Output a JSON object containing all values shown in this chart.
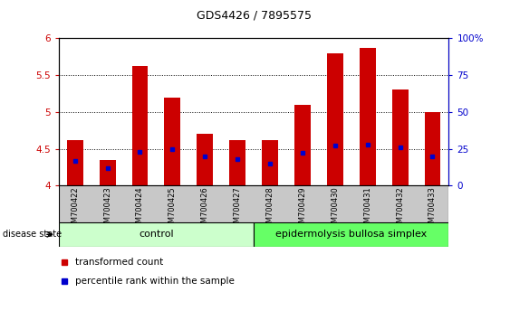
{
  "title": "GDS4426 / 7895575",
  "samples": [
    "GSM700422",
    "GSM700423",
    "GSM700424",
    "GSM700425",
    "GSM700426",
    "GSM700427",
    "GSM700428",
    "GSM700429",
    "GSM700430",
    "GSM700431",
    "GSM700432",
    "GSM700433"
  ],
  "transformed_count": [
    4.62,
    4.35,
    5.62,
    5.2,
    4.7,
    4.62,
    4.62,
    5.1,
    5.8,
    5.87,
    5.3,
    5.0
  ],
  "percentile_rank": [
    17,
    12,
    23,
    25,
    20,
    18,
    15,
    22,
    27,
    28,
    26,
    20
  ],
  "bar_bottom": 4.0,
  "ylim_left": [
    4.0,
    6.0
  ],
  "ylim_right": [
    0,
    100
  ],
  "yticks_left": [
    4.0,
    4.5,
    5.0,
    5.5,
    6.0
  ],
  "yticks_right": [
    0,
    25,
    50,
    75,
    100
  ],
  "ytick_labels_left": [
    "4",
    "4.5",
    "5",
    "5.5",
    "6"
  ],
  "ytick_labels_right": [
    "0",
    "25",
    "50",
    "75",
    "100%"
  ],
  "bar_color": "#cc0000",
  "percentile_color": "#0000cc",
  "control_label": "control",
  "ebs_label": "epidermolysis bullosa simplex",
  "disease_state_label": "disease state",
  "legend_bar_label": "transformed count",
  "legend_pct_label": "percentile rank within the sample",
  "control_color": "#ccffcc",
  "ebs_color": "#66ff66",
  "label_band_color": "#c8c8c8",
  "bar_width": 0.5,
  "n_control": 6,
  "n_ebs": 6
}
